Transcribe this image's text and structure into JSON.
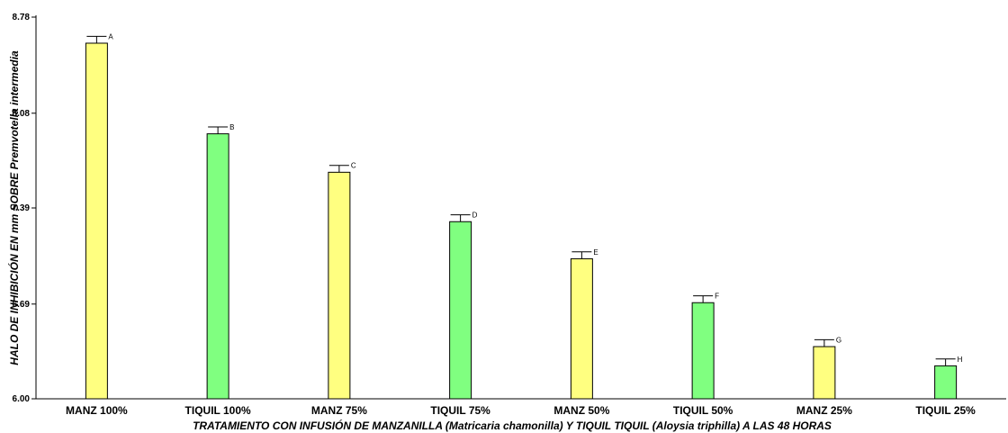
{
  "chart_data": {
    "type": "bar",
    "title": "",
    "xlabel": "TRATAMIENTO CON INFUSIÓN DE MANZANILLA (Matricaria chamonilla) Y TIQUIL TIQUIL (Aloysia triphilla) A LAS 48 HORAS",
    "ylabel": "HALO DE INHIBICIÓN EN mm SOBRE Premvotella intermedia",
    "ylim": [
      6.0,
      8.78
    ],
    "yticks": [
      "6.00",
      "6.69",
      "7.39",
      "8.08",
      "8.78"
    ],
    "categories": [
      "MANZ 100%",
      "TIQUIL 100%",
      "MANZ 75%",
      "TIQUIL 75%",
      "MANZ 50%",
      "TIQUIL 50%",
      "MANZ 25%",
      "TIQUIL 25%"
    ],
    "values": [
      8.59,
      7.93,
      7.65,
      7.29,
      7.02,
      6.7,
      6.38,
      6.24
    ],
    "error": [
      0.05,
      0.05,
      0.05,
      0.05,
      0.05,
      0.05,
      0.05,
      0.05
    ],
    "letters": [
      "A",
      "B",
      "C",
      "D",
      "E",
      "F",
      "G",
      "H"
    ],
    "bar_colors": [
      "#ffff80",
      "#80ff80",
      "#ffff80",
      "#80ff80",
      "#ffff80",
      "#80ff80",
      "#ffff80",
      "#80ff80"
    ],
    "bar_stroke": "#000000",
    "grid": false,
    "legend": "none"
  }
}
